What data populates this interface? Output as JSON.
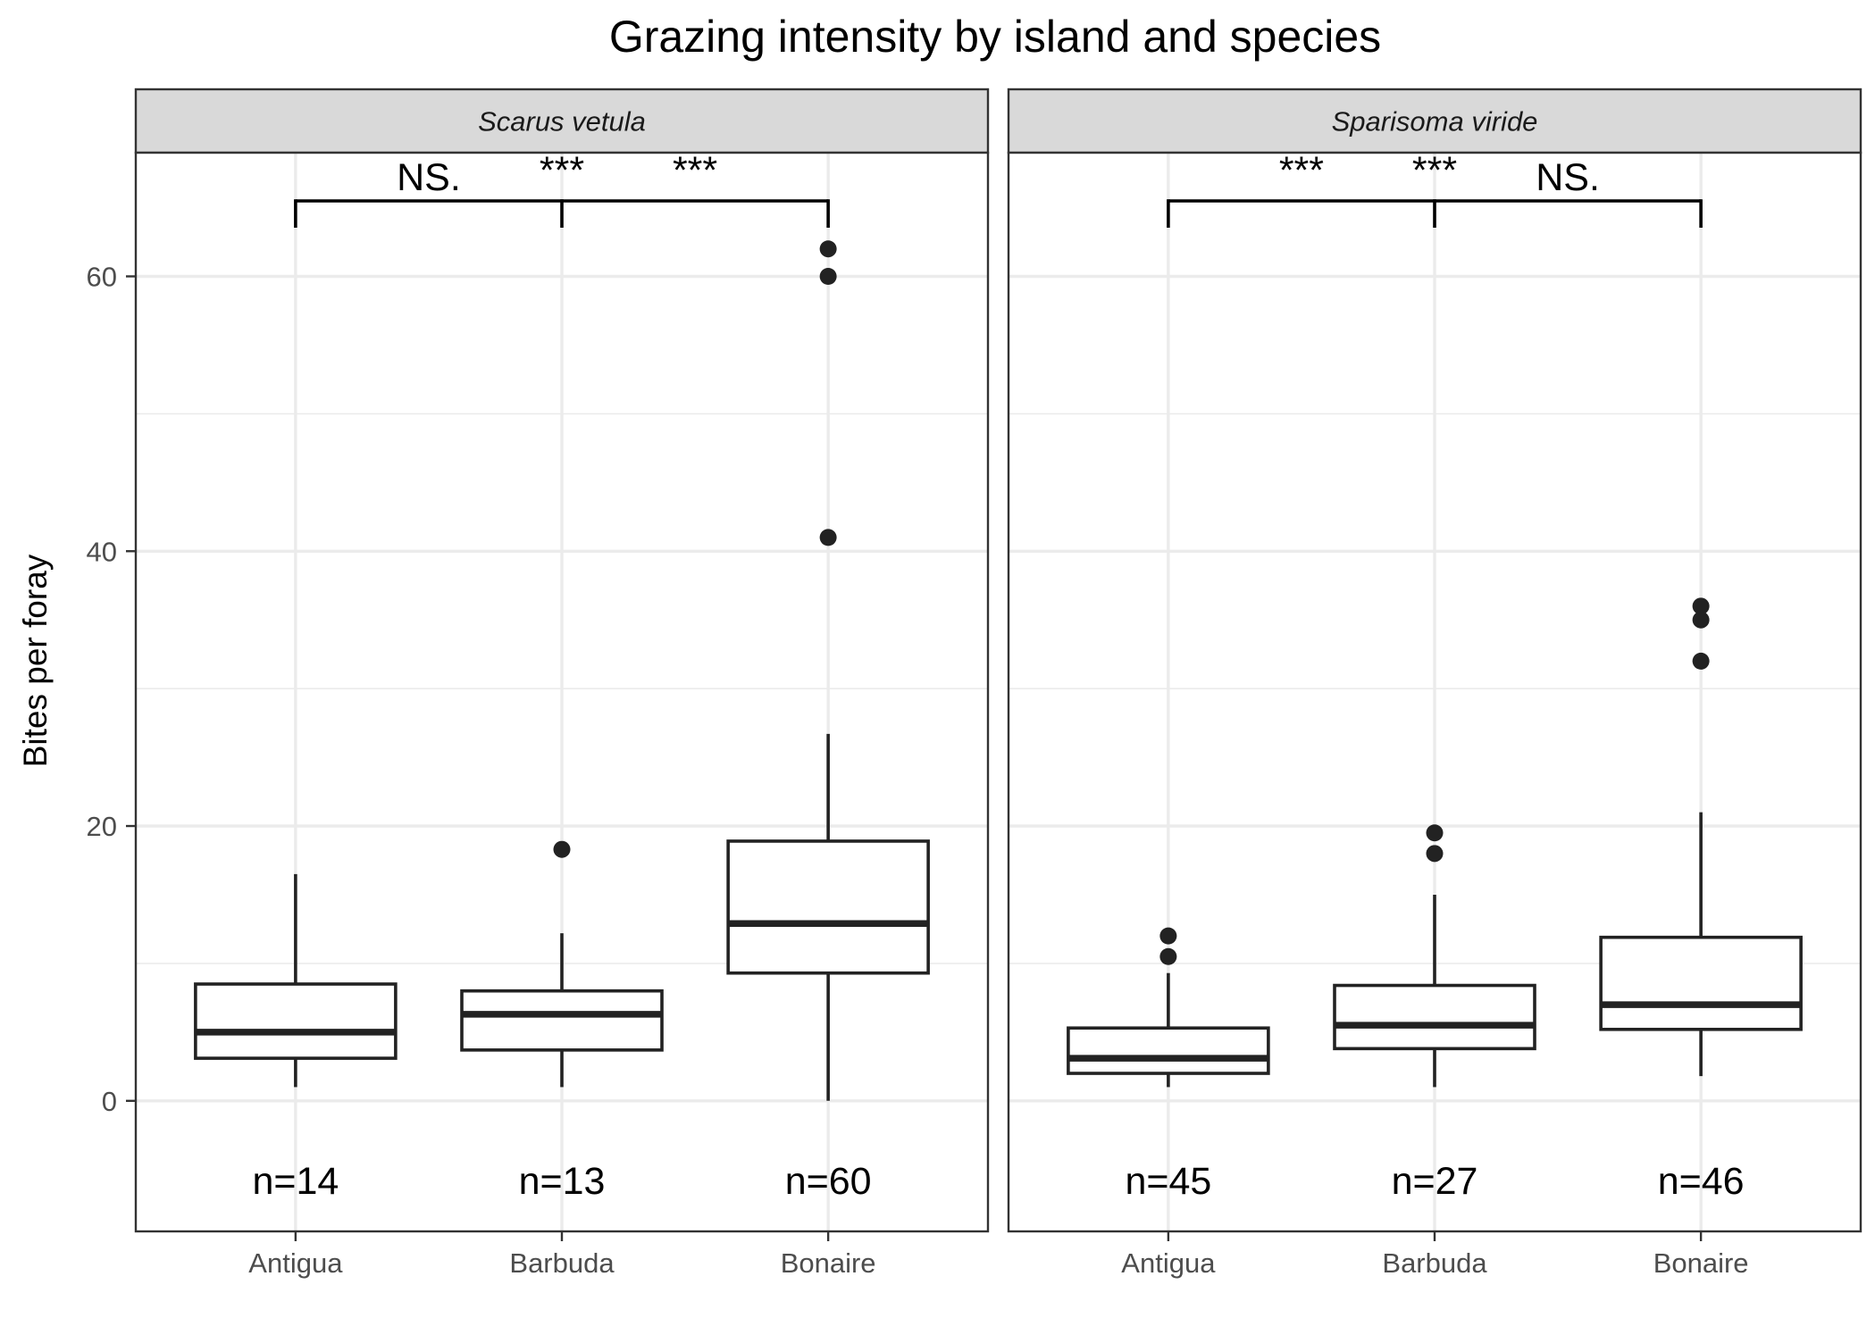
{
  "chart_data": {
    "type": "boxplot",
    "title": "Grazing intensity by island and species",
    "xlabel": "",
    "ylabel": "Bites per foray",
    "ylim": [
      -9.5,
      69
    ],
    "yticks": [
      0,
      20,
      40,
      60
    ],
    "categories": [
      "Antigua",
      "Barbuda",
      "Bonaire"
    ],
    "grid": true,
    "panels": [
      {
        "facet": "Scarus vetula",
        "groups": [
          {
            "category": "Antigua",
            "n_label": "n=14",
            "lower_whisker": 1.0,
            "q1": 3.1,
            "median": 5.0,
            "q3": 8.5,
            "upper_whisker": 16.5,
            "outliers": []
          },
          {
            "category": "Barbuda",
            "n_label": "n=13",
            "lower_whisker": 1.0,
            "q1": 3.7,
            "median": 6.3,
            "q3": 8.0,
            "upper_whisker": 12.2,
            "outliers": [
              18.3
            ]
          },
          {
            "category": "Bonaire",
            "n_label": "n=60",
            "lower_whisker": 0.0,
            "q1": 9.3,
            "median": 12.9,
            "q3": 18.9,
            "upper_whisker": 26.7,
            "outliers": [
              41.0,
              60.0,
              62.0
            ]
          }
        ],
        "comparisons": [
          "NS.",
          "***",
          "***"
        ]
      },
      {
        "facet": "Sparisoma viride",
        "groups": [
          {
            "category": "Antigua",
            "n_label": "n=45",
            "lower_whisker": 1.0,
            "q1": 2.0,
            "median": 3.1,
            "q3": 5.3,
            "upper_whisker": 9.3,
            "outliers": [
              10.5,
              12.0
            ]
          },
          {
            "category": "Barbuda",
            "n_label": "n=27",
            "lower_whisker": 1.0,
            "q1": 3.8,
            "median": 5.5,
            "q3": 8.4,
            "upper_whisker": 15.0,
            "outliers": [
              18.0,
              19.5
            ]
          },
          {
            "category": "Bonaire",
            "n_label": "n=46",
            "lower_whisker": 1.8,
            "q1": 5.2,
            "median": 7.0,
            "q3": 11.9,
            "upper_whisker": 21.0,
            "outliers": [
              32.0,
              35.0,
              36.0
            ]
          }
        ],
        "comparisons": [
          "***",
          "***",
          "NS."
        ]
      }
    ]
  }
}
